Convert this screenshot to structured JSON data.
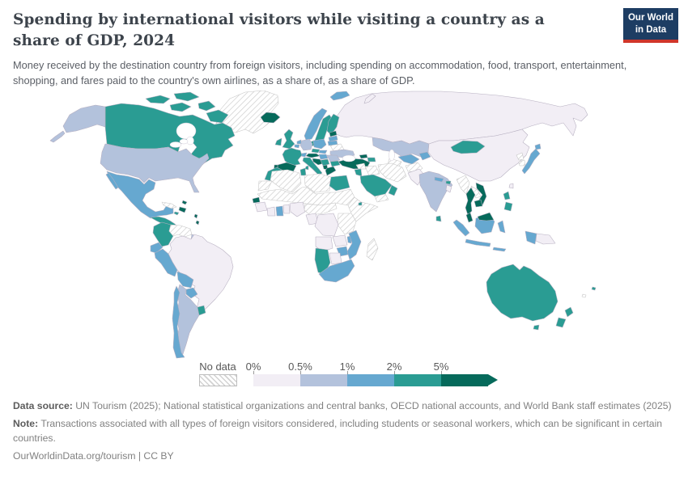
{
  "header": {
    "title": "Spending by international visitors while visiting a country as a share of GDP, 2024",
    "subtitle": "Money received by the destination country from foreign visitors, including spending on accommodation, food, transport, entertainment, shopping, and fares paid to the country's own airlines, as a share of, as a share of GDP.",
    "logo": {
      "line1": "Our World",
      "line2": "in Data",
      "bg_color": "#1d3d63",
      "accent_color": "#d0362a"
    }
  },
  "chart_data": {
    "type": "choropleth-map",
    "title": "Spending by international visitors while visiting a country as a share of GDP",
    "year": "2024",
    "projection": "world",
    "legend": {
      "no_data_label": "No data",
      "tick_labels": [
        "0%",
        "0.5%",
        "1%",
        "2%",
        "5%"
      ],
      "bins": [
        {
          "range": "0%-0.5%",
          "color": "#f2eef5"
        },
        {
          "range": "0.5%-1%",
          "color": "#b3c2dc"
        },
        {
          "range": "1%-2%",
          "color": "#66a8d0"
        },
        {
          "range": "2%-5%",
          "color": "#2a9c93"
        },
        {
          "range": ">5%",
          "color": "#066a5b"
        }
      ],
      "open_ended_right": true
    },
    "countries": {
      "greenland": "no_data",
      "iceland": 4,
      "canada": 3,
      "alaska": 1,
      "usa": 1,
      "mexico": 2,
      "central_america": 3,
      "panama_costa_rica": 4,
      "cuba": "no_data",
      "hispaniola": 4,
      "jamaica": 3,
      "bahamas": 4,
      "lesser_antilles": 4,
      "colombia": 3,
      "venezuela": "no_data",
      "guyanas": 1,
      "ecuador": 2,
      "peru": 2,
      "brazil": 0,
      "bolivia": 2,
      "paraguay": 2,
      "uruguay": 3,
      "argentina": 1,
      "chile": 2,
      "svalbard": 2,
      "norway": 2,
      "sweden": 3,
      "finland": 3,
      "denmark": 3,
      "uk": 3,
      "ireland": 3,
      "france": 3,
      "spain": 4,
      "portugal": 4,
      "germany": 1,
      "netherlands": 2,
      "belgium": 2,
      "switzerland": 2,
      "austria": 4,
      "italy": 3,
      "czechia": 3,
      "slovakia": 2,
      "hungary": 2,
      "poland": 2,
      "estonia": 4,
      "latvia": 2,
      "lithuania": 2,
      "belarus": "no_data",
      "ukraine": 1,
      "romania": 1,
      "bulgaria": 3,
      "serbia_bosnia": 3,
      "croatia_slovenia": 4,
      "albania_montenegro": 4,
      "greece": 4,
      "turkey": 4,
      "russia": 0,
      "novaya_zemlya": 0,
      "georgia": 4,
      "azerbaijan_armenia": 3,
      "kazakhstan": 1,
      "uzbekistan": 2,
      "turkmenistan": "no_data",
      "kyrgyzstan_tajikistan": 2,
      "syria": "no_data",
      "iraq": "no_data",
      "iran": "no_data",
      "israel_jordan": 3,
      "saudi_arabia": 3,
      "yemen": "no_data",
      "oman": 3,
      "afghanistan": "no_data",
      "pakistan": 0,
      "india": 1,
      "nepal": 2,
      "bhutan": 3,
      "bangladesh": 0,
      "sri_lanka": 3,
      "china": 0,
      "mongolia": 3,
      "north_korea": "no_data",
      "south_korea": "no_data",
      "japan": 2,
      "taiwan": 0,
      "myanmar": "no_data",
      "thailand": 4,
      "laos": "no_data",
      "vietnam": 4,
      "cambodia": 4,
      "malaysia": 4,
      "malaysian_borneo": 4,
      "indonesia": 2,
      "indonesian_papua": 2,
      "philippines": 3,
      "papua_new_guinea": 0,
      "australia": 3,
      "tasmania": 3,
      "new_zealand": 3,
      "fiji": 3,
      "vanuatu_nc": "no_data",
      "morocco": 3,
      "western_sahara": "no_data",
      "algeria": "no_data",
      "tunisia": 3,
      "libya": "no_data",
      "egypt": 3,
      "sahel_band": "no_data",
      "senegal": 4,
      "guinea_region": 0,
      "ivory_coast": 0,
      "ghana": 2,
      "togo_benin": 0,
      "nigeria": 0,
      "cameroon_car": "no_data",
      "horn_of_africa": "no_data",
      "djibouti": 3,
      "east_africa": "no_data",
      "gabon_congo": 0,
      "drc": 0,
      "angola": 0,
      "zambia": 0,
      "malawi": 2,
      "mozambique": 2,
      "zimbabwe": 2,
      "namibia": 3,
      "botswana": 0,
      "south_africa": 2,
      "madagascar": "no_data"
    }
  },
  "footer": {
    "source_label": "Data source:",
    "source_text": "UN Tourism (2025); National statistical organizations and central banks, OECD national accounts, and World Bank staff estimates (2025)",
    "note_label": "Note:",
    "note_text": "Transactions associated with all types of foreign visitors considered, including students or seasonal workers, which can be significant in certain countries.",
    "citation": "OurWorldinData.org/tourism | CC BY"
  }
}
